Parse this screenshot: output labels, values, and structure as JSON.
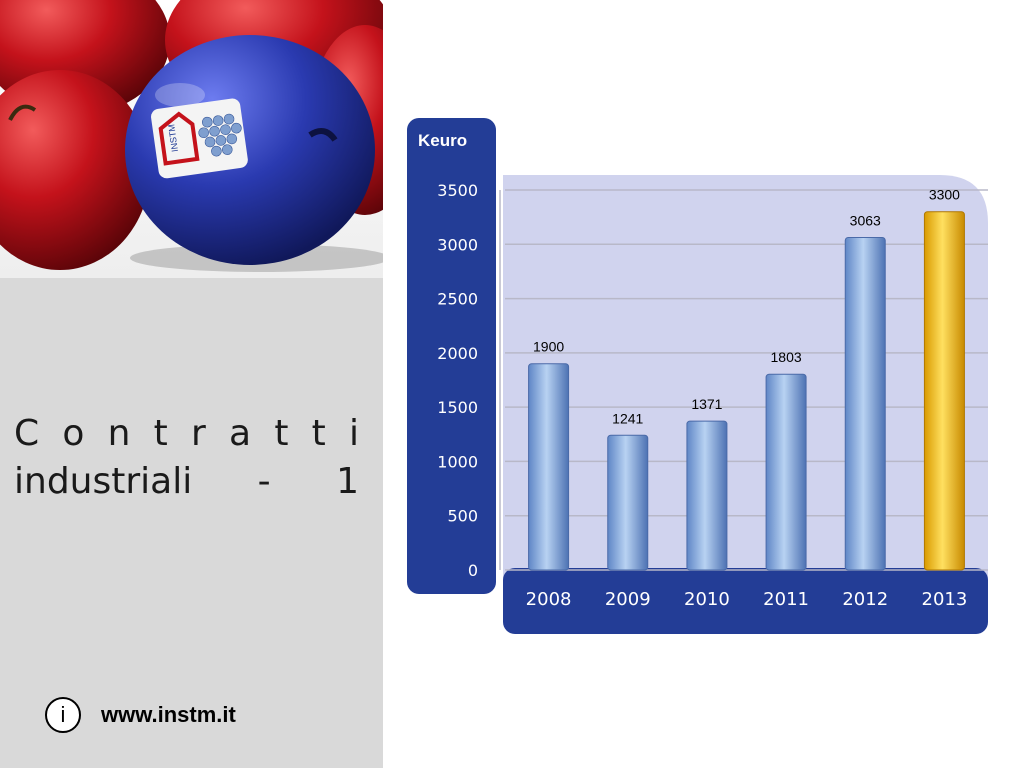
{
  "slide": {
    "title_line1": "C o n t r a t t i",
    "title_line2": "industriali - 1",
    "website": "www.instm.it",
    "info_icon_glyph": "i",
    "logo_text": "INSTM"
  },
  "colors": {
    "panel_navy": "#233d96",
    "plot_area": "#d0d3ee",
    "bar_blue": "#8fb4e3",
    "bar_gold": "#ffc000",
    "left_panel": "#d9d9d9",
    "apple_red": "#c4121b",
    "apple_blue": "#2a3ab0"
  },
  "chart_data": {
    "type": "bar",
    "title": "",
    "ylabel": "Keuro",
    "xlabel": "",
    "categories": [
      "2008",
      "2009",
      "2010",
      "2011",
      "2012",
      "2013"
    ],
    "values": [
      1900,
      1241,
      1371,
      1803,
      3063,
      3300
    ],
    "highlight_category": "2013",
    "ylim": [
      0,
      3500
    ],
    "yticks": [
      0,
      500,
      1000,
      1500,
      2000,
      2500,
      3000,
      3500
    ],
    "grid": true,
    "data_labels": true,
    "legend": "none"
  }
}
